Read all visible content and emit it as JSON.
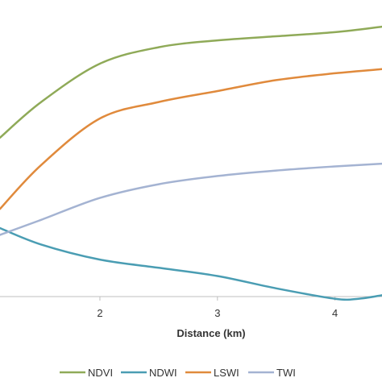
{
  "chart_data": {
    "type": "line",
    "xlabel": "Distance (km)",
    "ylabel": "",
    "x_ticks": [
      2,
      3,
      4
    ],
    "xlim": [
      1.15,
      4.4
    ],
    "ylim": [
      0,
      1
    ],
    "grid": false,
    "legend_position": "bottom",
    "series": [
      {
        "name": "NDVI",
        "color": "#8faa58",
        "x": [
          1.15,
          1.5,
          2.0,
          2.5,
          3.0,
          3.5,
          4.0,
          4.4
        ],
        "y": [
          0.58,
          0.71,
          0.85,
          0.91,
          0.935,
          0.95,
          0.965,
          0.985
        ]
      },
      {
        "name": "NDWI",
        "color": "#4a9db3",
        "x": [
          1.15,
          1.5,
          2.0,
          2.5,
          3.0,
          3.5,
          4.0,
          4.2,
          4.4
        ],
        "y": [
          0.25,
          0.19,
          0.135,
          0.105,
          0.075,
          0.03,
          -0.008,
          -0.008,
          0.005
        ]
      },
      {
        "name": "LSWI",
        "color": "#e08a3c",
        "x": [
          1.15,
          1.5,
          2.0,
          2.5,
          3.0,
          3.5,
          4.0,
          4.4
        ],
        "y": [
          0.32,
          0.48,
          0.65,
          0.71,
          0.75,
          0.79,
          0.815,
          0.83
        ]
      },
      {
        "name": "TWI",
        "color": "#a4b3d2",
        "x": [
          1.15,
          1.5,
          2.0,
          2.5,
          3.0,
          3.5,
          4.0,
          4.4
        ],
        "y": [
          0.225,
          0.28,
          0.36,
          0.41,
          0.44,
          0.46,
          0.475,
          0.485
        ]
      }
    ]
  }
}
